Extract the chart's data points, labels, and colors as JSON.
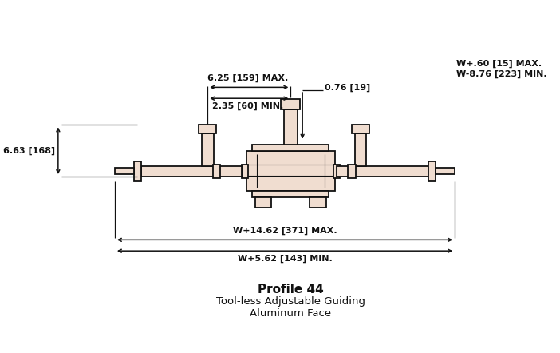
{
  "fig_width": 7.02,
  "fig_height": 4.42,
  "dpi": 100,
  "bg_color": "#ffffff",
  "line_color": "#111111",
  "fill_color": "#f0ddd0",
  "title": "Profile 44",
  "subtitle1": "Tool-less Adjustable Guiding",
  "subtitle2": "Aluminum Face",
  "dim_top_left1": "6.25 [159] MAX.",
  "dim_top_left2": "2.35 [60] MIN.",
  "dim_top_right1": "W+.60 [15] MAX.",
  "dim_top_right2": "W-8.76 [223] MIN.",
  "dim_center": "0.76 [19]",
  "dim_left": "6.63 [168]",
  "dim_bottom1": "W+14.62 [371] MAX.",
  "dim_bottom2": "W+5.62 [143] MIN."
}
